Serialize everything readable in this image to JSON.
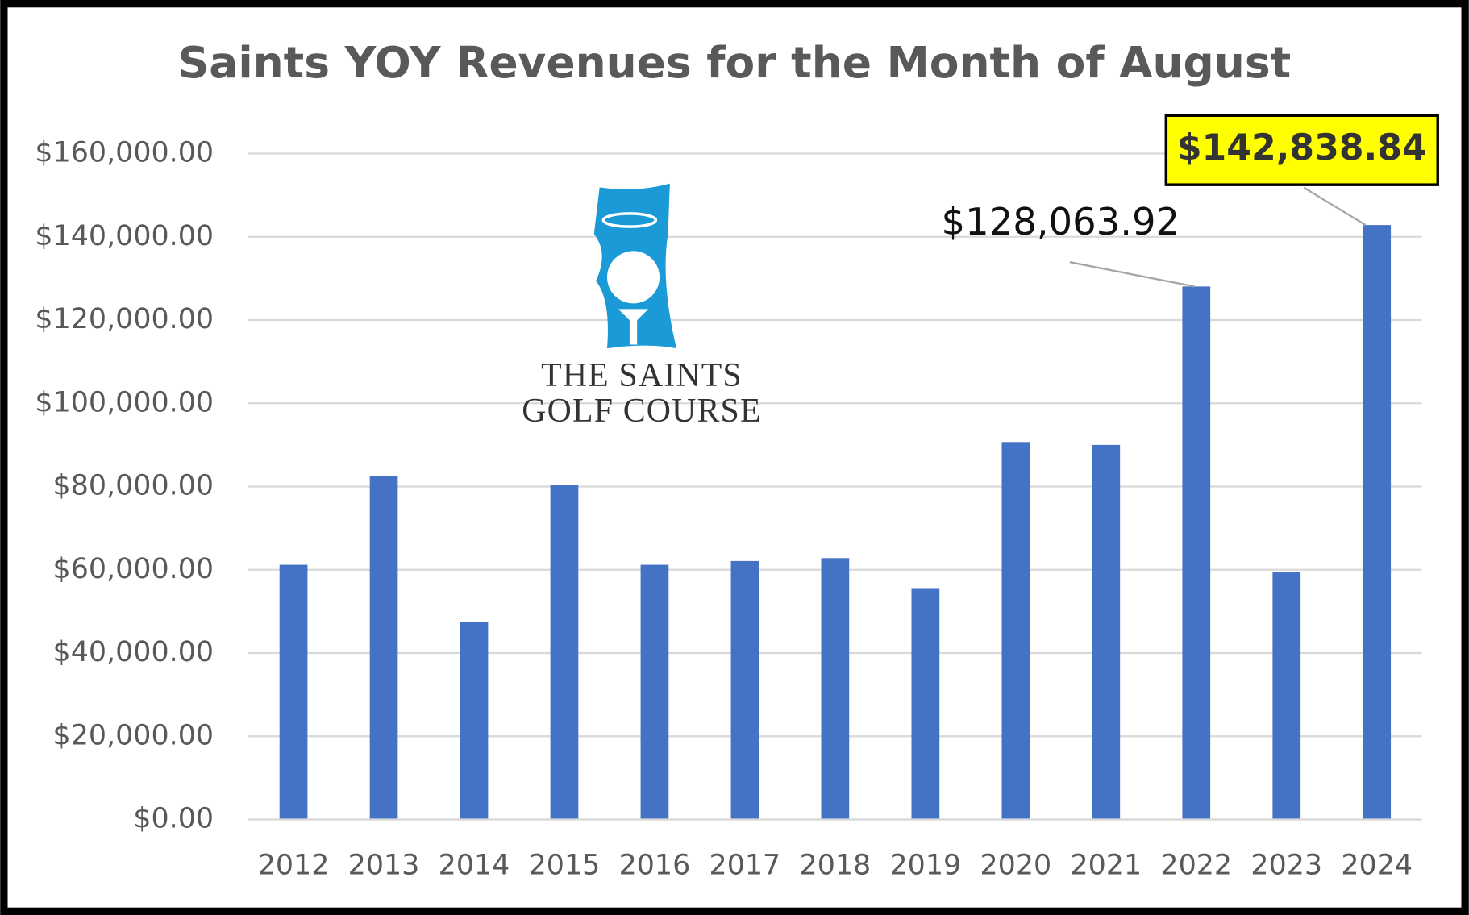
{
  "chart_data": {
    "type": "bar",
    "title": "Saints YOY Revenues for the Month of August",
    "logo_text": [
      "THE SAINTS",
      "GOLF COURSE"
    ],
    "categories": [
      "2012",
      "2013",
      "2014",
      "2015",
      "2016",
      "2017",
      "2018",
      "2019",
      "2020",
      "2021",
      "2022",
      "2023",
      "2024"
    ],
    "values": [
      61200,
      82600,
      47500,
      80300,
      61200,
      62100,
      62800,
      55600,
      90700,
      90000,
      128063.92,
      59400,
      142838.84
    ],
    "value_labels": [
      null,
      null,
      null,
      null,
      null,
      null,
      null,
      null,
      null,
      null,
      "$128,063.92",
      null,
      "$142,838.84"
    ],
    "color": "#4472c4",
    "ylim": [
      0,
      160000
    ],
    "yticks": [
      {
        "value": 0,
        "label": "$0.00"
      },
      {
        "value": 20000,
        "label": "$20,000.00"
      },
      {
        "value": 40000,
        "label": "$40,000.00"
      },
      {
        "value": 60000,
        "label": "$60,000.00"
      },
      {
        "value": 80000,
        "label": "$80,000.00"
      },
      {
        "value": 100000,
        "label": "$100,000.00"
      },
      {
        "value": 120000,
        "label": "$120,000.00"
      },
      {
        "value": 140000,
        "label": "$140,000.00"
      },
      {
        "value": 160000,
        "label": "$160,000.00"
      }
    ],
    "grid": true
  }
}
